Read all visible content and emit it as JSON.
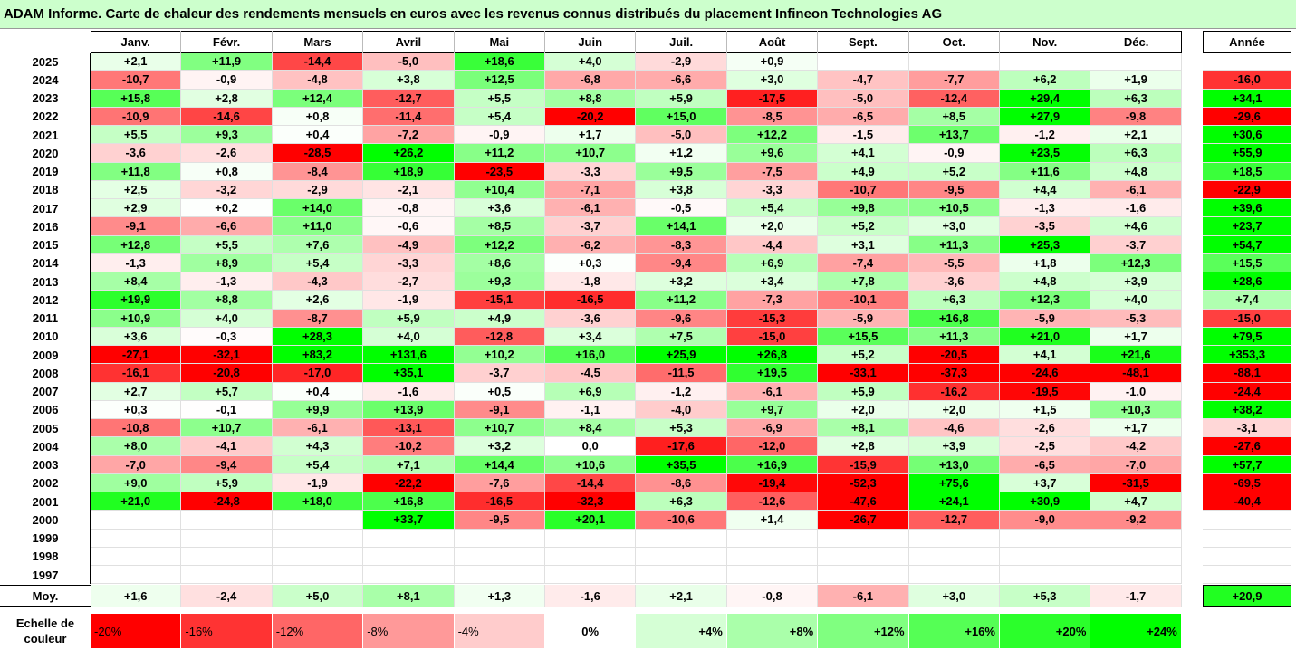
{
  "title": "ADAM Informe. Carte de chaleur des rendements mensuels en euros avec les revenus connus distribués du placement Infineon Technologies AG",
  "chart_data": {
    "type": "heatmap",
    "months": [
      "Janv.",
      "Févr.",
      "Mars",
      "Avril",
      "Mai",
      "Juin",
      "Juil.",
      "Août",
      "Sept.",
      "Oct.",
      "Nov.",
      "Déc."
    ],
    "annual_header": "Année",
    "years": [
      "2025",
      "2024",
      "2023",
      "2022",
      "2021",
      "2020",
      "2019",
      "2018",
      "2017",
      "2016",
      "2015",
      "2014",
      "2013",
      "2012",
      "2011",
      "2010",
      "2009",
      "2008",
      "2007",
      "2006",
      "2005",
      "2004",
      "2003",
      "2002",
      "2001",
      "2000",
      "1999",
      "1998",
      "1997"
    ],
    "values": [
      [
        "+2,1",
        "+11,9",
        "-14,4",
        "-5,0",
        "+18,6",
        "+4,0",
        "-2,9",
        "+0,9",
        "",
        "",
        "",
        ""
      ],
      [
        "-10,7",
        "-0,9",
        "-4,8",
        "+3,8",
        "+12,5",
        "-6,8",
        "-6,6",
        "+3,0",
        "-4,7",
        "-7,7",
        "+6,2",
        "+1,9"
      ],
      [
        "+15,8",
        "+2,8",
        "+12,4",
        "-12,7",
        "+5,5",
        "+8,8",
        "+5,9",
        "-17,5",
        "-5,0",
        "-12,4",
        "+29,4",
        "+6,3"
      ],
      [
        "-10,9",
        "-14,6",
        "+0,8",
        "-11,4",
        "+5,4",
        "-20,2",
        "+15,0",
        "-8,5",
        "-6,5",
        "+8,5",
        "+27,9",
        "-9,8"
      ],
      [
        "+5,5",
        "+9,3",
        "+0,4",
        "-7,2",
        "-0,9",
        "+1,7",
        "-5,0",
        "+12,2",
        "-1,5",
        "+13,7",
        "-1,2",
        "+2,1"
      ],
      [
        "-3,6",
        "-2,6",
        "-28,5",
        "+26,2",
        "+11,2",
        "+10,7",
        "+1,2",
        "+9,6",
        "+4,1",
        "-0,9",
        "+23,5",
        "+6,3"
      ],
      [
        "+11,8",
        "+0,8",
        "-8,4",
        "+18,9",
        "-23,5",
        "-3,3",
        "+9,5",
        "-7,5",
        "+4,9",
        "+5,2",
        "+11,6",
        "+4,8"
      ],
      [
        "+2,5",
        "-3,2",
        "-2,9",
        "-2,1",
        "+10,4",
        "-7,1",
        "+3,8",
        "-3,3",
        "-10,7",
        "-9,5",
        "+4,4",
        "-6,1"
      ],
      [
        "+2,9",
        "+0,2",
        "+14,0",
        "-0,8",
        "+3,6",
        "-6,1",
        "-0,5",
        "+5,4",
        "+9,8",
        "+10,5",
        "-1,3",
        "-1,6"
      ],
      [
        "-9,1",
        "-6,6",
        "+11,0",
        "-0,6",
        "+8,5",
        "-3,7",
        "+14,1",
        "+2,0",
        "+5,2",
        "+3,0",
        "-3,5",
        "+4,6"
      ],
      [
        "+12,8",
        "+5,5",
        "+7,6",
        "-4,9",
        "+12,2",
        "-6,2",
        "-8,3",
        "-4,4",
        "+3,1",
        "+11,3",
        "+25,3",
        "-3,7"
      ],
      [
        "-1,3",
        "+8,9",
        "+5,4",
        "-3,3",
        "+8,6",
        "+0,3",
        "-9,4",
        "+6,9",
        "-7,4",
        "-5,5",
        "+1,8",
        "+12,3"
      ],
      [
        "+8,4",
        "-1,3",
        "-4,3",
        "-2,7",
        "+9,3",
        "-1,8",
        "+3,2",
        "+3,4",
        "+7,8",
        "-3,6",
        "+4,8",
        "+3,9"
      ],
      [
        "+19,9",
        "+8,8",
        "+2,6",
        "-1,9",
        "-15,1",
        "-16,5",
        "+11,2",
        "-7,3",
        "-10,1",
        "+6,3",
        "+12,3",
        "+4,0"
      ],
      [
        "+10,9",
        "+4,0",
        "-8,7",
        "+5,9",
        "+4,9",
        "-3,6",
        "-9,6",
        "-15,3",
        "-5,9",
        "+16,8",
        "-5,9",
        "-5,3"
      ],
      [
        "+3,6",
        "-0,3",
        "+28,3",
        "+4,0",
        "-12,8",
        "+3,4",
        "+7,5",
        "-15,0",
        "+15,5",
        "+11,3",
        "+21,0",
        "+1,7"
      ],
      [
        "-27,1",
        "-32,1",
        "+83,2",
        "+131,6",
        "+10,2",
        "+16,0",
        "+25,9",
        "+26,8",
        "+5,2",
        "-20,5",
        "+4,1",
        "+21,6"
      ],
      [
        "-16,1",
        "-20,8",
        "-17,0",
        "+35,1",
        "-3,7",
        "-4,5",
        "-11,5",
        "+19,5",
        "-33,1",
        "-37,3",
        "-24,6",
        "-48,1"
      ],
      [
        "+2,7",
        "+5,7",
        "+0,4",
        "-1,6",
        "+0,5",
        "+6,9",
        "-1,2",
        "-6,1",
        "+5,9",
        "-16,2",
        "-19,5",
        "-1,0"
      ],
      [
        "+0,3",
        "-0,1",
        "+9,9",
        "+13,9",
        "-9,1",
        "-1,1",
        "-4,0",
        "+9,7",
        "+2,0",
        "+2,0",
        "+1,5",
        "+10,3"
      ],
      [
        "-10,8",
        "+10,7",
        "-6,1",
        "-13,1",
        "+10,7",
        "+8,4",
        "+5,3",
        "-6,9",
        "+8,1",
        "-4,6",
        "-2,6",
        "+1,7"
      ],
      [
        "+8,0",
        "-4,1",
        "+4,3",
        "-10,2",
        "+3,2",
        "0,0",
        "-17,6",
        "-12,0",
        "+2,8",
        "+3,9",
        "-2,5",
        "-4,2"
      ],
      [
        "-7,0",
        "-9,4",
        "+5,4",
        "+7,1",
        "+14,4",
        "+10,6",
        "+35,5",
        "+16,9",
        "-15,9",
        "+13,0",
        "-6,5",
        "-7,0"
      ],
      [
        "+9,0",
        "+5,9",
        "-1,9",
        "-22,2",
        "-7,6",
        "-14,4",
        "-8,6",
        "-19,4",
        "-52,3",
        "+75,6",
        "+3,7",
        "-31,5"
      ],
      [
        "+21,0",
        "-24,8",
        "+18,0",
        "+16,8",
        "-16,5",
        "-32,3",
        "+6,3",
        "-12,6",
        "-47,6",
        "+24,1",
        "+30,9",
        "+4,7"
      ],
      [
        "",
        "",
        "",
        "+33,7",
        "-9,5",
        "+20,1",
        "-10,6",
        "+1,4",
        "-26,7",
        "-12,7",
        "-9,0",
        "-9,2"
      ],
      [
        "",
        "",
        "",
        "",
        "",
        "",
        "",
        "",
        "",
        "",
        "",
        ""
      ],
      [
        "",
        "",
        "",
        "",
        "",
        "",
        "",
        "",
        "",
        "",
        "",
        ""
      ],
      [
        "",
        "",
        "",
        "",
        "",
        "",
        "",
        "",
        "",
        "",
        "",
        ""
      ]
    ],
    "annual": [
      "",
      "-16,0",
      "+34,1",
      "-29,6",
      "+30,6",
      "+55,9",
      "+18,5",
      "-22,9",
      "+39,6",
      "+23,7",
      "+54,7",
      "+15,5",
      "+28,6",
      "+7,4",
      "-15,0",
      "+79,5",
      "+353,3",
      "-88,1",
      "-24,4",
      "+38,2",
      "-3,1",
      "-27,6",
      "+57,7",
      "-69,5",
      "-40,4",
      "",
      "",
      "",
      ""
    ],
    "average_label": "Moy.",
    "average": [
      "+1,6",
      "-2,4",
      "+5,0",
      "+8,1",
      "+1,3",
      "-1,6",
      "+2,1",
      "-0,8",
      "-6,1",
      "+3,0",
      "+5,3",
      "-1,7"
    ],
    "average_annual": "+20,9",
    "scale_label": "Echelle de couleur",
    "scale": [
      "-20%",
      "-16%",
      "-12%",
      "-8%",
      "-4%",
      "0%",
      "+4%",
      "+8%",
      "+12%",
      "+16%",
      "+20%",
      "+24%"
    ],
    "scale_values": [
      -20,
      -16,
      -12,
      -8,
      -4,
      0,
      4,
      8,
      12,
      16,
      20,
      24
    ]
  }
}
